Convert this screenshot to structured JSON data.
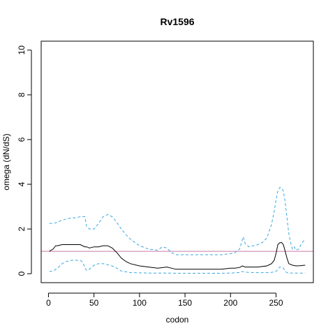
{
  "chart_data": {
    "type": "line",
    "title": "Rv1596",
    "xlabel": "codon",
    "ylabel": "omega (dN/dS)",
    "xlim": [
      -8,
      291
    ],
    "ylim": [
      -0.4,
      10.4
    ],
    "xticks": [
      0,
      50,
      100,
      150,
      200,
      250
    ],
    "yticks": [
      0,
      2,
      4,
      6,
      8,
      10
    ],
    "reference_line": {
      "y": 1,
      "color": "#CC79A7"
    },
    "series": [
      {
        "role": "upper-ci",
        "style": "dashed",
        "color": "#3BA7E0",
        "x": [
          1,
          5,
          10,
          15,
          20,
          25,
          30,
          35,
          40,
          42,
          45,
          50,
          55,
          60,
          65,
          70,
          75,
          80,
          85,
          90,
          95,
          100,
          110,
          120,
          125,
          130,
          135,
          140,
          150,
          160,
          170,
          180,
          190,
          200,
          205,
          210,
          212,
          214,
          216,
          220,
          225,
          230,
          235,
          240,
          245,
          248,
          250,
          252,
          254,
          256,
          258,
          260,
          262,
          264,
          266,
          268,
          270,
          272,
          275,
          278,
          282
        ],
        "y": [
          2.25,
          2.25,
          2.3,
          2.4,
          2.45,
          2.5,
          2.5,
          2.55,
          2.55,
          2.1,
          2.0,
          2.0,
          2.25,
          2.55,
          2.65,
          2.55,
          2.3,
          2.0,
          1.75,
          1.55,
          1.4,
          1.25,
          1.1,
          1.05,
          1.2,
          1.15,
          0.95,
          0.85,
          0.85,
          0.85,
          0.85,
          0.85,
          0.85,
          0.9,
          0.95,
          1.1,
          1.4,
          1.65,
          1.35,
          1.2,
          1.25,
          1.3,
          1.4,
          1.6,
          2.2,
          2.8,
          3.3,
          3.7,
          3.85,
          3.85,
          3.7,
          3.2,
          2.5,
          1.8,
          1.4,
          1.1,
          1.2,
          1.05,
          1.1,
          1.35,
          1.55
        ]
      },
      {
        "role": "omega",
        "style": "solid",
        "color": "#000000",
        "x": [
          1,
          5,
          8,
          10,
          15,
          20,
          25,
          30,
          35,
          40,
          42,
          45,
          50,
          55,
          60,
          65,
          70,
          75,
          80,
          85,
          90,
          100,
          110,
          120,
          130,
          135,
          140,
          150,
          160,
          170,
          180,
          190,
          200,
          205,
          210,
          213,
          216,
          220,
          230,
          240,
          245,
          248,
          250,
          252,
          254,
          256,
          258,
          260,
          262,
          264,
          268,
          272,
          276,
          282
        ],
        "y": [
          1.0,
          1.1,
          1.25,
          1.25,
          1.3,
          1.3,
          1.3,
          1.3,
          1.3,
          1.2,
          1.2,
          1.15,
          1.2,
          1.2,
          1.25,
          1.25,
          1.15,
          0.95,
          0.7,
          0.55,
          0.45,
          0.35,
          0.3,
          0.25,
          0.3,
          0.25,
          0.2,
          0.2,
          0.2,
          0.2,
          0.2,
          0.2,
          0.25,
          0.25,
          0.28,
          0.35,
          0.3,
          0.3,
          0.3,
          0.35,
          0.45,
          0.6,
          0.9,
          1.3,
          1.38,
          1.4,
          1.3,
          1.0,
          0.7,
          0.45,
          0.38,
          0.35,
          0.36,
          0.38
        ]
      },
      {
        "role": "lower-ci",
        "style": "dashed",
        "color": "#3BA7E0",
        "x": [
          1,
          5,
          10,
          15,
          20,
          25,
          30,
          35,
          38,
          40,
          42,
          45,
          50,
          55,
          60,
          65,
          70,
          75,
          80,
          90,
          100,
          110,
          120,
          130,
          140,
          150,
          160,
          170,
          180,
          190,
          200,
          205,
          210,
          213,
          216,
          220,
          230,
          240,
          245,
          250,
          252,
          254,
          256,
          258,
          260,
          262,
          265,
          270,
          275,
          282
        ],
        "y": [
          0.1,
          0.12,
          0.25,
          0.45,
          0.55,
          0.6,
          0.6,
          0.6,
          0.5,
          0.25,
          0.15,
          0.2,
          0.38,
          0.45,
          0.45,
          0.4,
          0.35,
          0.25,
          0.12,
          0.05,
          0.04,
          0.03,
          0.03,
          0.03,
          0.02,
          0.02,
          0.02,
          0.02,
          0.02,
          0.02,
          0.03,
          0.04,
          0.06,
          0.1,
          0.07,
          0.06,
          0.05,
          0.05,
          0.06,
          0.1,
          0.2,
          0.3,
          0.3,
          0.25,
          0.12,
          0.04,
          0.03,
          0.03,
          0.03,
          0.03
        ]
      }
    ]
  }
}
